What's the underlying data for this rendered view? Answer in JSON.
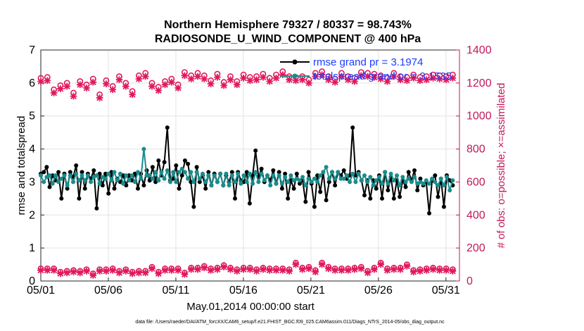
{
  "chart_data": {
    "type": "line",
    "title_line1": "Northern Hemisphere 79327 / 80337 = 98.743%",
    "title_line2": "RADIOSONDE_U_WIND_COMPONENT @ 400 hPa",
    "xlabel": "May.01,2014 00:00:00 start",
    "ylabel_left": "rmse and totalspread",
    "ylabel_right": "# of obs: o=possible; ×=assimilated",
    "x_ticks": [
      "05/01",
      "05/06",
      "05/11",
      "05/16",
      "05/21",
      "05/26",
      "05/31"
    ],
    "x_tick_days": [
      1,
      6,
      11,
      16,
      21,
      26,
      31
    ],
    "xlim": [
      1,
      32
    ],
    "ylim_left": [
      0,
      7
    ],
    "yticks_left": [
      "0",
      "1",
      "2",
      "3",
      "4",
      "5",
      "6",
      "7"
    ],
    "ylim_right": [
      0,
      1400
    ],
    "yticks_right": [
      "0",
      "200",
      "400",
      "600",
      "800",
      "1000",
      "1200",
      "1400"
    ],
    "footnote": "data file: /Users/raeder/DAI/ATM_forcXX/CAM6_setup/f.e21.FHIST_BGC.f09_025.CAM6assim.011/Diags_NTrS_2014-05/obs_diag_output.nc",
    "legend": [
      {
        "label": "rmse grand pr = 3.1974",
        "color": "#000000"
      },
      {
        "label": "totalspread grand pr = 3.1535",
        "color": "#1a8c8c"
      }
    ],
    "series": [
      {
        "name": "rmse",
        "axis": "left",
        "color": "#000000",
        "values": [
          3.25,
          3.3,
          3.45,
          2.85,
          3.2,
          3.05,
          3.3,
          2.5,
          3.25,
          2.8,
          3.3,
          3.15,
          3.5,
          2.5,
          3.3,
          2.8,
          3.25,
          3.1,
          3.35,
          2.2,
          3.25,
          2.9,
          3.25,
          2.65,
          3.3,
          2.8,
          3.1,
          3.0,
          3.2,
          2.9,
          3.2,
          3.05,
          3.25,
          2.8,
          3.25,
          2.9,
          3.35,
          3.05,
          3.45,
          3.0,
          3.65,
          3.2,
          3.6,
          4.65,
          3.05,
          3.1,
          3.5,
          2.8,
          3.2,
          3.65,
          3.55,
          3.0,
          2.25,
          3.45,
          3.0,
          3.2,
          2.8,
          3.3,
          2.9,
          3.25,
          3.0,
          3.25,
          2.9,
          3.2,
          3.0,
          3.3,
          2.5,
          3.3,
          3.05,
          3.0,
          3.3,
          2.35,
          3.2,
          3.95,
          3.15,
          3.4,
          3.0,
          3.2,
          3.05,
          3.35,
          2.95,
          3.3,
          2.8,
          3.25,
          2.5,
          3.05,
          2.8,
          3.25,
          2.95,
          3.05,
          2.4,
          3.3,
          2.95,
          2.25,
          3.2,
          2.7,
          3.3,
          2.45,
          3.0,
          3.3,
          2.9,
          3.3,
          3.2,
          3.35,
          3.1,
          3.2,
          4.65,
          3.2,
          3.3,
          3.05,
          2.6,
          3.05,
          2.5,
          3.05,
          2.8,
          3.2,
          2.5,
          3.3,
          2.75,
          3.15,
          2.5,
          3.05,
          2.55,
          3.05,
          2.85,
          3.3,
          3.05,
          3.35,
          2.75,
          3.1,
          2.9,
          3.0,
          2.05,
          3.05,
          3.2,
          2.55,
          3.1,
          2.25,
          3.2,
          3.05,
          2.9
        ]
      },
      {
        "name": "totalspread",
        "axis": "left",
        "color": "#1a8c8c",
        "values": [
          3.2,
          3.0,
          3.15,
          3.2,
          2.95,
          3.2,
          3.0,
          3.1,
          3.2,
          2.9,
          3.2,
          3.0,
          3.25,
          3.05,
          3.2,
          3.05,
          3.2,
          3.0,
          3.15,
          3.2,
          2.95,
          3.15,
          3.1,
          3.25,
          3.05,
          3.3,
          3.05,
          3.25,
          2.95,
          3.2,
          3.05,
          3.2,
          3.0,
          3.3,
          3.1,
          4.0,
          3.2,
          3.2,
          3.1,
          3.3,
          3.05,
          3.3,
          3.1,
          3.35,
          3.0,
          3.3,
          3.0,
          3.3,
          3.4,
          3.3,
          3.1,
          3.3,
          3.0,
          3.3,
          3.1,
          3.25,
          3.0,
          3.2,
          2.9,
          3.2,
          3.0,
          3.25,
          2.9,
          3.25,
          2.9,
          3.2,
          3.0,
          3.25,
          2.95,
          3.2,
          3.0,
          3.25,
          2.95,
          3.3,
          3.0,
          3.25,
          3.05,
          3.2,
          2.9,
          3.2,
          2.95,
          3.2,
          2.95,
          3.15,
          3.0,
          3.2,
          3.05,
          3.1,
          3.05,
          3.15,
          2.9,
          3.1,
          3.0,
          3.1,
          3.0,
          3.2,
          3.3,
          3.45,
          3.1,
          3.3,
          3.1,
          3.3,
          3.1,
          3.1,
          3.2,
          3.0,
          3.25,
          3.0,
          3.25,
          3.05,
          3.2,
          3.0,
          3.15,
          2.9,
          3.05,
          3.15,
          2.95,
          3.3,
          2.95,
          3.25,
          3.05,
          3.2,
          2.9,
          3.15,
          3.0,
          3.1,
          3.0,
          3.15,
          2.95,
          3.0,
          2.95,
          3.05,
          2.95,
          3.1,
          3.0,
          2.9,
          3.1,
          2.9,
          3.15,
          2.75,
          3.05
        ]
      },
      {
        "name": "obs possible",
        "axis": "right",
        "color": "#e0185c",
        "marker": "o",
        "values": [
          1230,
          1235,
          1160,
          1185,
          1200,
          1140,
          1210,
          1190,
          1225,
          1130,
          1215,
          1180,
          1240,
          1200,
          1150,
          1245,
          1260,
          1200,
          1175,
          1210,
          1225,
          1190,
          1265,
          1245,
          1260,
          1245,
          1215,
          1255,
          1205,
          1240,
          1210,
          1250,
          1235,
          1240,
          1255,
          1230,
          1250,
          1270,
          1240,
          1235,
          1240,
          1220,
          1260,
          1270,
          1240,
          1225,
          1260,
          1240,
          1230,
          1265,
          1260,
          1255,
          1245,
          1230,
          1260,
          1240,
          1235,
          1250,
          1235,
          1240,
          1250,
          1245,
          1240,
          1250
        ]
      },
      {
        "name": "obs assimilated",
        "axis": "right",
        "color": "#e0185c",
        "marker": "x",
        "values": [
          1210,
          1215,
          1140,
          1165,
          1180,
          1120,
          1190,
          1170,
          1205,
          1110,
          1195,
          1160,
          1220,
          1180,
          1130,
          1225,
          1240,
          1180,
          1155,
          1190,
          1205,
          1170,
          1245,
          1225,
          1240,
          1225,
          1195,
          1235,
          1185,
          1220,
          1190,
          1230,
          1215,
          1220,
          1235,
          1210,
          1230,
          1250,
          1220,
          1215,
          1220,
          1200,
          1240,
          1250,
          1220,
          1205,
          1240,
          1220,
          1210,
          1245,
          1240,
          1235,
          1225,
          1210,
          1240,
          1220,
          1215,
          1230,
          1215,
          1220,
          1230,
          1225,
          1220,
          1230
        ]
      },
      {
        "name": "obs possible (low)",
        "axis": "right",
        "color": "#e0185c",
        "marker": "o",
        "values": [
          75,
          75,
          75,
          55,
          60,
          65,
          60,
          70,
          45,
          70,
          70,
          75,
          60,
          70,
          55,
          60,
          60,
          85,
          55,
          75,
          75,
          75,
          50,
          80,
          80,
          90,
          75,
          80,
          95,
          80,
          70,
          80,
          80,
          70,
          80,
          75,
          75,
          75,
          70,
          110,
          80,
          85,
          65,
          110,
          85,
          75,
          75,
          75,
          80,
          85,
          60,
          80,
          110,
          75,
          80,
          80,
          100,
          65,
          70,
          75,
          80,
          75,
          75,
          70
        ]
      },
      {
        "name": "obs assimilated (low)",
        "axis": "right",
        "color": "#e0185c",
        "marker": "x",
        "values": [
          65,
          65,
          65,
          45,
          50,
          55,
          50,
          60,
          35,
          60,
          60,
          65,
          50,
          60,
          45,
          50,
          50,
          75,
          45,
          65,
          65,
          65,
          40,
          70,
          70,
          80,
          65,
          70,
          85,
          70,
          60,
          70,
          70,
          60,
          70,
          65,
          65,
          65,
          60,
          100,
          70,
          75,
          55,
          100,
          75,
          65,
          65,
          65,
          70,
          75,
          50,
          70,
          100,
          65,
          70,
          70,
          90,
          55,
          60,
          65,
          70,
          65,
          65,
          60
        ]
      }
    ]
  }
}
